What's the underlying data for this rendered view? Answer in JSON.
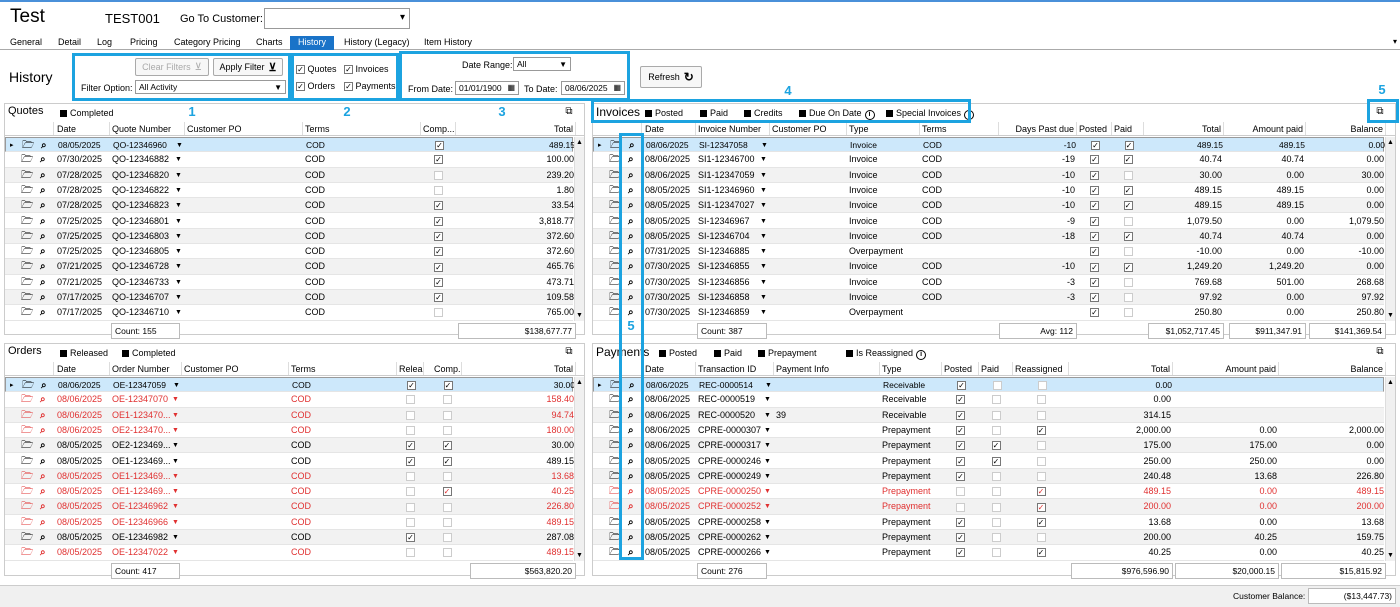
{
  "customer": {
    "name": "Test",
    "id": "TEST001",
    "goto_label": "Go To Customer:",
    "goto_value": ""
  },
  "tabs": [
    "General",
    "Detail",
    "Log",
    "Pricing",
    "Category Pricing",
    "Charts",
    "History",
    "History (Legacy)",
    "Item History"
  ],
  "active_tab": "History",
  "history_title": "History",
  "filters": {
    "clear_label": "Clear Filters",
    "apply_label": "Apply Filter",
    "option_label": "Filter Option:",
    "option_value": "All Activity",
    "checkboxes": [
      {
        "label": "Quotes",
        "checked": true
      },
      {
        "label": "Invoices",
        "checked": true
      },
      {
        "label": "Orders",
        "checked": true
      },
      {
        "label": "Payments",
        "checked": true
      }
    ],
    "date_range_label": "Date Range:",
    "date_range_value": "All",
    "from_label": "From Date:",
    "from_value": "01/01/1900",
    "to_label": "To Date:",
    "to_value": "08/06/2025",
    "refresh_label": "Refresh"
  },
  "callouts": [
    "1",
    "2",
    "3",
    "4",
    "5",
    "5",
    "5"
  ],
  "quotes": {
    "title": "Quotes",
    "toggles": [
      "Completed"
    ],
    "columns": [
      "Date",
      "Quote Number",
      "Customer PO",
      "Terms",
      "Comp...",
      "Total"
    ],
    "rows": [
      {
        "date": "08/05/2025",
        "number": "QO-12346960",
        "po": "",
        "terms": "COD",
        "completed": true,
        "total": "489.15"
      },
      {
        "date": "07/30/2025",
        "number": "QO-12346882",
        "po": "",
        "terms": "COD",
        "completed": true,
        "total": "100.00"
      },
      {
        "date": "07/28/2025",
        "number": "QO-12346820",
        "po": "",
        "terms": "COD",
        "completed": false,
        "total": "239.20"
      },
      {
        "date": "07/28/2025",
        "number": "QO-12346822",
        "po": "",
        "terms": "COD",
        "completed": false,
        "total": "1.80"
      },
      {
        "date": "07/28/2025",
        "number": "QO-12346823",
        "po": "",
        "terms": "COD",
        "completed": true,
        "total": "33.54"
      },
      {
        "date": "07/25/2025",
        "number": "QO-12346801",
        "po": "",
        "terms": "COD",
        "completed": true,
        "total": "3,818.77"
      },
      {
        "date": "07/25/2025",
        "number": "QO-12346803",
        "po": "",
        "terms": "COD",
        "completed": true,
        "total": "372.60"
      },
      {
        "date": "07/25/2025",
        "number": "QO-12346805",
        "po": "",
        "terms": "COD",
        "completed": true,
        "total": "372.60"
      },
      {
        "date": "07/21/2025",
        "number": "QO-12346728",
        "po": "",
        "terms": "COD",
        "completed": true,
        "total": "465.76"
      },
      {
        "date": "07/21/2025",
        "number": "QO-12346733",
        "po": "",
        "terms": "COD",
        "completed": true,
        "total": "473.71"
      },
      {
        "date": "07/17/2025",
        "number": "QO-12346707",
        "po": "",
        "terms": "COD",
        "completed": true,
        "total": "109.58"
      },
      {
        "date": "07/17/2025",
        "number": "QO-12346710",
        "po": "",
        "terms": "COD",
        "completed": false,
        "total": "765.00"
      }
    ],
    "count": "Count: 155",
    "sum_total": "$138,677.77"
  },
  "orders": {
    "title": "Orders",
    "toggles": [
      "Released",
      "Completed"
    ],
    "columns": [
      "Date",
      "Order Number",
      "Customer PO",
      "Terms",
      "Relea...",
      "Comp...",
      "Total"
    ],
    "rows": [
      {
        "date": "08/06/2025",
        "number": "OE-12347059",
        "po": "",
        "terms": "COD",
        "released": true,
        "completed": true,
        "total": "30.00",
        "red": false
      },
      {
        "date": "08/06/2025",
        "number": "OE-12347070",
        "po": "",
        "terms": "COD",
        "released": false,
        "completed": false,
        "total": "158.40",
        "red": true
      },
      {
        "date": "08/06/2025",
        "number": "OE1-123470...",
        "po": "",
        "terms": "COD",
        "released": false,
        "completed": false,
        "total": "94.74",
        "red": true
      },
      {
        "date": "08/06/2025",
        "number": "OE2-123470...",
        "po": "",
        "terms": "COD",
        "released": false,
        "completed": false,
        "total": "180.00",
        "red": true
      },
      {
        "date": "08/05/2025",
        "number": "OE2-123469...",
        "po": "",
        "terms": "COD",
        "released": true,
        "completed": true,
        "total": "30.00",
        "red": false
      },
      {
        "date": "08/05/2025",
        "number": "OE1-123469...",
        "po": "",
        "terms": "COD",
        "released": true,
        "completed": true,
        "total": "489.15",
        "red": false
      },
      {
        "date": "08/05/2025",
        "number": "OE1-123469...",
        "po": "",
        "terms": "COD",
        "released": false,
        "completed": false,
        "total": "13.68",
        "red": true
      },
      {
        "date": "08/05/2025",
        "number": "OE1-123469...",
        "po": "",
        "terms": "COD",
        "released": false,
        "completed": true,
        "total": "40.25",
        "red": true
      },
      {
        "date": "08/05/2025",
        "number": "OE-12346962",
        "po": "",
        "terms": "COD",
        "released": false,
        "completed": false,
        "total": "226.80",
        "red": true
      },
      {
        "date": "08/05/2025",
        "number": "OE-12346966",
        "po": "",
        "terms": "COD",
        "released": false,
        "completed": false,
        "total": "489.15",
        "red": true
      },
      {
        "date": "08/05/2025",
        "number": "OE-12346982",
        "po": "",
        "terms": "COD",
        "released": true,
        "completed": false,
        "total": "287.08",
        "red": false
      },
      {
        "date": "08/05/2025",
        "number": "OE-12347022",
        "po": "",
        "terms": "COD",
        "released": false,
        "completed": false,
        "total": "489.15",
        "red": true
      }
    ],
    "count": "Count: 417",
    "sum_total": "$563,820.20"
  },
  "invoices": {
    "title": "Invoices",
    "toggles": [
      "Posted",
      "Paid",
      "Credits",
      "Due On Date",
      "Special Invoices"
    ],
    "info_toggles": [
      "Due On Date",
      "Special Invoices"
    ],
    "columns": [
      "Date",
      "Invoice Number",
      "Customer PO",
      "Type",
      "Terms",
      "Days Past due",
      "Posted",
      "Paid",
      "Total",
      "Amount paid",
      "Balance"
    ],
    "rows": [
      {
        "date": "08/06/2025",
        "number": "SI-12347058",
        "po": "",
        "type": "Invoice",
        "terms": "COD",
        "days": "-10",
        "posted": true,
        "paid": true,
        "total": "489.15",
        "amount_paid": "489.15",
        "balance": "0.00"
      },
      {
        "date": "08/06/2025",
        "number": "SI1-12346700",
        "po": "",
        "type": "Invoice",
        "terms": "COD",
        "days": "-19",
        "posted": true,
        "paid": true,
        "total": "40.74",
        "amount_paid": "40.74",
        "balance": "0.00"
      },
      {
        "date": "08/06/2025",
        "number": "SI1-12347059",
        "po": "",
        "type": "Invoice",
        "terms": "COD",
        "days": "-10",
        "posted": true,
        "paid": false,
        "total": "30.00",
        "amount_paid": "0.00",
        "balance": "30.00"
      },
      {
        "date": "08/05/2025",
        "number": "SI1-12346960",
        "po": "",
        "type": "Invoice",
        "terms": "COD",
        "days": "-10",
        "posted": true,
        "paid": true,
        "total": "489.15",
        "amount_paid": "489.15",
        "balance": "0.00"
      },
      {
        "date": "08/05/2025",
        "number": "SI1-12347027",
        "po": "",
        "type": "Invoice",
        "terms": "COD",
        "days": "-10",
        "posted": true,
        "paid": true,
        "total": "489.15",
        "amount_paid": "489.15",
        "balance": "0.00"
      },
      {
        "date": "08/05/2025",
        "number": "SI-12346967",
        "po": "",
        "type": "Invoice",
        "terms": "COD",
        "days": "-9",
        "posted": true,
        "paid": false,
        "total": "1,079.50",
        "amount_paid": "0.00",
        "balance": "1,079.50"
      },
      {
        "date": "08/05/2025",
        "number": "SI-12346704",
        "po": "",
        "type": "Invoice",
        "terms": "COD",
        "days": "-18",
        "posted": true,
        "paid": true,
        "total": "40.74",
        "amount_paid": "40.74",
        "balance": "0.00"
      },
      {
        "date": "07/31/2025",
        "number": "SI-12346885",
        "po": "",
        "type": "Overpayment",
        "terms": "",
        "days": "",
        "posted": true,
        "paid": false,
        "total": "-10.00",
        "amount_paid": "0.00",
        "balance": "-10.00"
      },
      {
        "date": "07/30/2025",
        "number": "SI-12346855",
        "po": "",
        "type": "Invoice",
        "terms": "COD",
        "days": "-10",
        "posted": true,
        "paid": true,
        "total": "1,249.20",
        "amount_paid": "1,249.20",
        "balance": "0.00"
      },
      {
        "date": "07/30/2025",
        "number": "SI-12346856",
        "po": "",
        "type": "Invoice",
        "terms": "COD",
        "days": "-3",
        "posted": true,
        "paid": false,
        "total": "769.68",
        "amount_paid": "501.00",
        "balance": "268.68"
      },
      {
        "date": "07/30/2025",
        "number": "SI-12346858",
        "po": "",
        "type": "Invoice",
        "terms": "COD",
        "days": "-3",
        "posted": true,
        "paid": false,
        "total": "97.92",
        "amount_paid": "0.00",
        "balance": "97.92"
      },
      {
        "date": "07/30/2025",
        "number": "SI-12346859",
        "po": "",
        "type": "Overpayment",
        "terms": "",
        "days": "",
        "posted": true,
        "paid": false,
        "total": "250.80",
        "amount_paid": "0.00",
        "balance": "250.80"
      }
    ],
    "count": "Count: 387",
    "avg": "Avg: 112",
    "sum_total": "$1,052,717.45",
    "sum_paid": "$911,347.91",
    "sum_balance": "$141,369.54"
  },
  "payments": {
    "title": "Payments",
    "toggles": [
      "Posted",
      "Paid",
      "Prepayment",
      "Is Reassigned"
    ],
    "info_toggles": [
      "Is Reassigned"
    ],
    "columns": [
      "Date",
      "Transaction ID",
      "Payment Info",
      "Type",
      "Posted",
      "Paid",
      "Reassigned",
      "Total",
      "Amount paid",
      "Balance"
    ],
    "rows": [
      {
        "date": "08/06/2025",
        "id": "REC-0000514",
        "info": "",
        "type": "Receivable",
        "posted": true,
        "paid": false,
        "reassigned": false,
        "total": "0.00",
        "amount_paid": "",
        "balance": "",
        "red": false
      },
      {
        "date": "08/06/2025",
        "id": "REC-0000519",
        "info": "",
        "type": "Receivable",
        "posted": true,
        "paid": false,
        "reassigned": false,
        "total": "0.00",
        "amount_paid": "",
        "balance": "",
        "red": false
      },
      {
        "date": "08/06/2025",
        "id": "REC-0000520",
        "info": "39",
        "type": "Receivable",
        "posted": true,
        "paid": false,
        "reassigned": false,
        "total": "314.15",
        "amount_paid": "",
        "balance": "",
        "red": false
      },
      {
        "date": "08/06/2025",
        "id": "CPRE-0000307",
        "info": "",
        "type": "Prepayment",
        "posted": true,
        "paid": false,
        "reassigned": true,
        "total": "2,000.00",
        "amount_paid": "0.00",
        "balance": "2,000.00",
        "red": false
      },
      {
        "date": "08/06/2025",
        "id": "CPRE-0000317",
        "info": "",
        "type": "Prepayment",
        "posted": true,
        "paid": true,
        "reassigned": false,
        "total": "175.00",
        "amount_paid": "175.00",
        "balance": "0.00",
        "red": false
      },
      {
        "date": "08/05/2025",
        "id": "CPRE-0000246",
        "info": "",
        "type": "Prepayment",
        "posted": true,
        "paid": true,
        "reassigned": false,
        "total": "250.00",
        "amount_paid": "250.00",
        "balance": "0.00",
        "red": false
      },
      {
        "date": "08/05/2025",
        "id": "CPRE-0000249",
        "info": "",
        "type": "Prepayment",
        "posted": true,
        "paid": false,
        "reassigned": false,
        "total": "240.48",
        "amount_paid": "13.68",
        "balance": "226.80",
        "red": false
      },
      {
        "date": "08/05/2025",
        "id": "CPRE-0000250",
        "info": "",
        "type": "Prepayment",
        "posted": false,
        "paid": false,
        "reassigned": true,
        "total": "489.15",
        "amount_paid": "0.00",
        "balance": "489.15",
        "red": true
      },
      {
        "date": "08/05/2025",
        "id": "CPRE-0000252",
        "info": "",
        "type": "Prepayment",
        "posted": false,
        "paid": false,
        "reassigned": true,
        "total": "200.00",
        "amount_paid": "0.00",
        "balance": "200.00",
        "red": true
      },
      {
        "date": "08/05/2025",
        "id": "CPRE-0000258",
        "info": "",
        "type": "Prepayment",
        "posted": true,
        "paid": false,
        "reassigned": true,
        "total": "13.68",
        "amount_paid": "0.00",
        "balance": "13.68",
        "red": false
      },
      {
        "date": "08/05/2025",
        "id": "CPRE-0000262",
        "info": "",
        "type": "Prepayment",
        "posted": true,
        "paid": false,
        "reassigned": false,
        "total": "200.00",
        "amount_paid": "40.25",
        "balance": "159.75",
        "red": false
      },
      {
        "date": "08/05/2025",
        "id": "CPRE-0000266",
        "info": "",
        "type": "Prepayment",
        "posted": true,
        "paid": false,
        "reassigned": true,
        "total": "40.25",
        "amount_paid": "0.00",
        "balance": "40.25",
        "red": false
      }
    ],
    "count": "Count: 276",
    "sum_total": "$976,596.90",
    "sum_paid": "$20,000.15",
    "sum_balance": "$15,815.92"
  },
  "customer_balance_label": "Customer Balance:",
  "customer_balance_value": "($13,447.73)",
  "colors": {
    "accent": "#1a73c8",
    "callout": "#1ca3e0",
    "selected_row": "#cde8fb",
    "red_text": "#e03030"
  }
}
